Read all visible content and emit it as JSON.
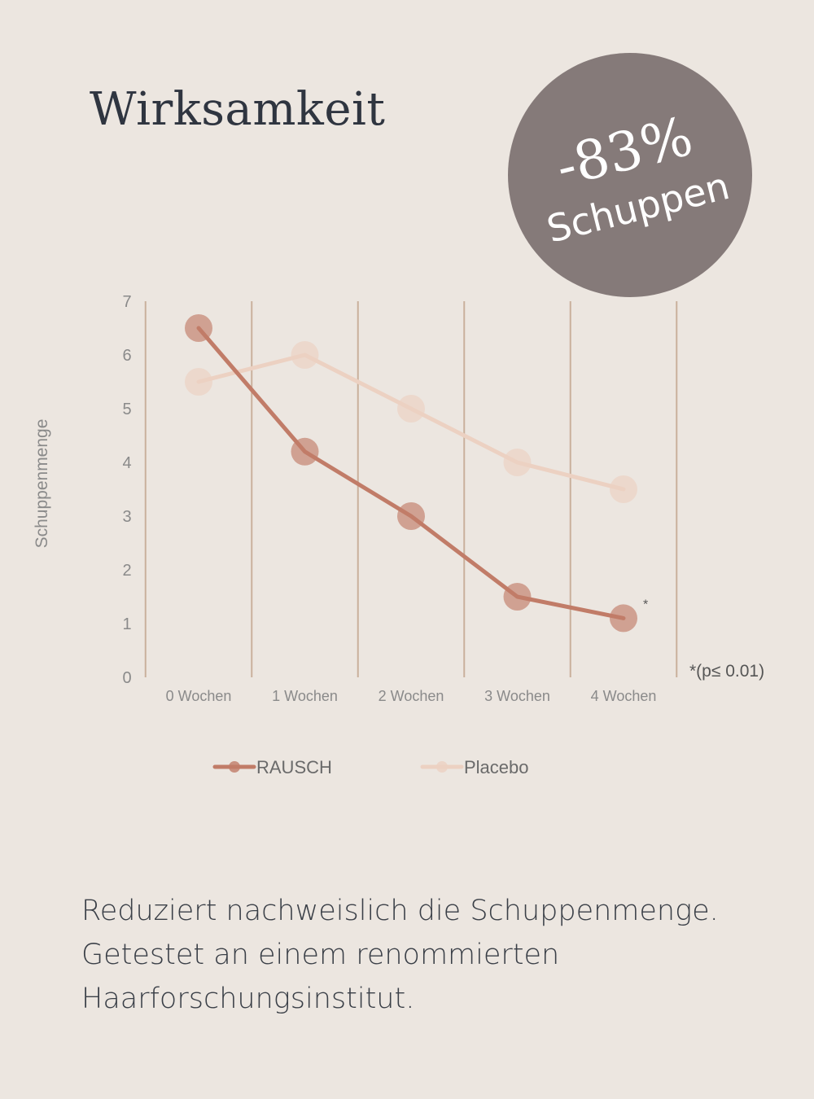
{
  "title": "Wirksamkeit",
  "badge": {
    "value": "-83%",
    "label": "Schuppen"
  },
  "chart_data": {
    "type": "line",
    "ylabel": "Schuppenmenge",
    "xlabel": "",
    "categories": [
      "0 Wochen",
      "1 Wochen",
      "2 Wochen",
      "3 Wochen",
      "4 Wochen"
    ],
    "ylim": [
      0,
      7
    ],
    "yticks": [
      0,
      1,
      2,
      3,
      4,
      5,
      6,
      7
    ],
    "grid": "vertical",
    "legend_position": "bottom",
    "series": [
      {
        "name": "RAUSCH",
        "values": [
          6.5,
          4.2,
          3.0,
          1.5,
          1.1
        ],
        "color": "#c17c68"
      },
      {
        "name": "Placebo",
        "values": [
          5.5,
          6.0,
          5.0,
          4.0,
          3.5
        ],
        "color": "#ecd1c2"
      }
    ],
    "annotations": [
      {
        "text": "*",
        "series": "RAUSCH",
        "category": "4 Wochen"
      },
      {
        "text": "*(p≤ 0.01)"
      }
    ]
  },
  "description": "Reduziert nachweislich die Schuppenmenge. Getestet an einem renommierten Haarforschungsinstitut.",
  "colors": {
    "background": "#ece6e0",
    "badge": "#857a79",
    "grid": "#c9b09c",
    "text": "#2f3540"
  }
}
